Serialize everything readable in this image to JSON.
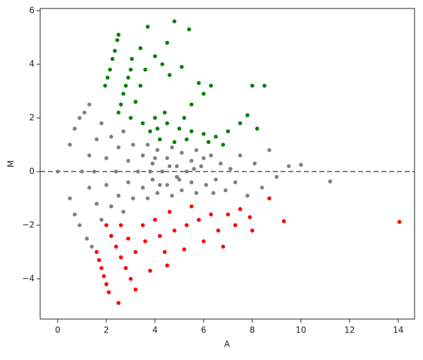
{
  "chart_data": {
    "type": "scatter",
    "xlabel": "A",
    "ylabel": "M",
    "xlim": [
      -0.72,
      14.67
    ],
    "ylim": [
      -5.5,
      6.08
    ],
    "xticks": [
      0,
      2,
      4,
      6,
      8,
      10,
      12,
      14
    ],
    "yticks": [
      {
        "value": -4,
        "label": "−4"
      },
      {
        "value": -2,
        "label": "−2"
      },
      0,
      2,
      4,
      6
    ],
    "hline": 0,
    "hline_color": "#808080",
    "series": [
      {
        "color": "#808080",
        "x": [
          0,
          0.5,
          0.5,
          0.7,
          0.7,
          0.9,
          0.9,
          1.0,
          1.1,
          1.2,
          1.3,
          1.4,
          1.3,
          1.3,
          1.6,
          1.6,
          1.8,
          1.8,
          1.5,
          2.0,
          2.0,
          2.2,
          2.2,
          2.4,
          2.5,
          2.5,
          2.7,
          2.7,
          2.9,
          2.9,
          3.1,
          3.1,
          3.3,
          3.5,
          3.5,
          3.7,
          3.7,
          3.9,
          3.9,
          4.1,
          4.1,
          4.3,
          4.5,
          4.5,
          4.7,
          4.7,
          4.9,
          4.9,
          5.1,
          5.1,
          5.3,
          5.5,
          5.5,
          5.7,
          5.7,
          5.9,
          6.1,
          6.3,
          6.5,
          6.7,
          6.9,
          7.1,
          7.3,
          7.5,
          7.8,
          8.1,
          8.4,
          8.7,
          9.0,
          9.5,
          10.0,
          11.2,
          3.8,
          4.0,
          4.2,
          4.6,
          5.0,
          5.6,
          6.0,
          6.4
        ],
        "y": [
          0,
          1.0,
          -1.0,
          1.6,
          -1.6,
          2.0,
          -2.0,
          0,
          2.2,
          -2.5,
          2.5,
          -2.8,
          0.6,
          -0.6,
          1.2,
          -1.2,
          1.8,
          -1.8,
          0,
          0.5,
          -0.5,
          1.3,
          -1.3,
          0,
          0.9,
          -0.9,
          1.5,
          -1.5,
          0.4,
          -0.4,
          1.0,
          -1.0,
          0,
          0.6,
          -0.6,
          1.0,
          -1.0,
          0.3,
          -0.3,
          0.8,
          -0.8,
          0,
          0.5,
          -0.5,
          0.9,
          -0.9,
          0.2,
          -0.2,
          0.7,
          -0.7,
          0,
          0.4,
          -0.4,
          0.8,
          -0.8,
          0.2,
          -0.5,
          0.6,
          -0.3,
          0.3,
          -0.7,
          0.1,
          -0.4,
          0.6,
          -0.9,
          0.3,
          -0.6,
          0.8,
          -0.2,
          0.2,
          0.25,
          -0.37,
          0.0,
          0.5,
          -0.5,
          0.2,
          -0.3,
          0.1,
          0.5,
          -0.8
        ]
      },
      {
        "color": "#008000",
        "x": [
          1.95,
          2.05,
          2.15,
          2.25,
          2.35,
          2.45,
          2.5,
          2.5,
          2.6,
          2.7,
          2.8,
          2.9,
          3.0,
          3.05,
          3.0,
          3.2,
          3.4,
          3.6,
          3.7,
          4.8,
          5.4,
          4.5,
          3.4,
          4.0,
          4.3,
          5.1,
          4.6,
          5.8,
          6.3,
          6.0,
          8.0,
          8.5,
          5.5,
          4.0,
          4.5,
          5.0,
          5.5,
          6.0,
          6.5,
          7.0,
          7.5,
          7.8,
          8.2,
          3.8,
          4.2,
          4.8,
          5.3,
          6.2,
          3.5,
          4.1,
          4.4,
          5.2,
          6.8
        ],
        "y": [
          3.2,
          3.5,
          3.8,
          4.2,
          4.5,
          4.9,
          5.1,
          2.2,
          2.5,
          2.9,
          3.2,
          3.5,
          3.8,
          4.2,
          2.0,
          2.6,
          3.2,
          3.8,
          5.4,
          5.6,
          5.3,
          4.8,
          4.6,
          4.3,
          4.0,
          3.9,
          3.6,
          3.3,
          3.2,
          2.9,
          3.2,
          3.2,
          2.5,
          2.0,
          1.8,
          1.6,
          1.5,
          1.4,
          1.3,
          1.5,
          1.8,
          2.1,
          1.6,
          1.5,
          1.2,
          1.1,
          1.2,
          1.1,
          1.8,
          1.6,
          2.2,
          2.0,
          1.0
        ]
      },
      {
        "color": "#ff0000",
        "x": [
          1.6,
          1.7,
          1.8,
          1.9,
          2.0,
          2.1,
          2.5,
          2.0,
          2.2,
          2.4,
          2.6,
          2.8,
          3.0,
          3.2,
          2.6,
          2.9,
          3.2,
          3.8,
          4.5,
          3.6,
          4.2,
          4.8,
          5.3,
          5.8,
          6.3,
          7.0,
          7.5,
          7.9,
          8.7,
          9.3,
          14.05,
          4.0,
          4.6,
          5.5,
          6.0,
          6.8,
          5.2,
          4.4,
          3.5,
          6.6,
          7.3,
          8.0
        ],
        "y": [
          -3.0,
          -3.3,
          -3.6,
          -3.9,
          -4.2,
          -4.5,
          -4.9,
          -2.0,
          -2.4,
          -2.8,
          -3.2,
          -3.6,
          -4.0,
          -4.4,
          -2.0,
          -2.5,
          -3.0,
          -3.7,
          -3.5,
          -2.6,
          -2.4,
          -2.2,
          -2.0,
          -1.8,
          -1.6,
          -1.6,
          -1.4,
          -1.7,
          -1.0,
          -1.85,
          -1.88,
          -1.8,
          -1.5,
          -1.3,
          -2.6,
          -2.8,
          -2.9,
          -3.0,
          -2.0,
          -2.2,
          -2.0,
          -2.2
        ]
      }
    ]
  }
}
